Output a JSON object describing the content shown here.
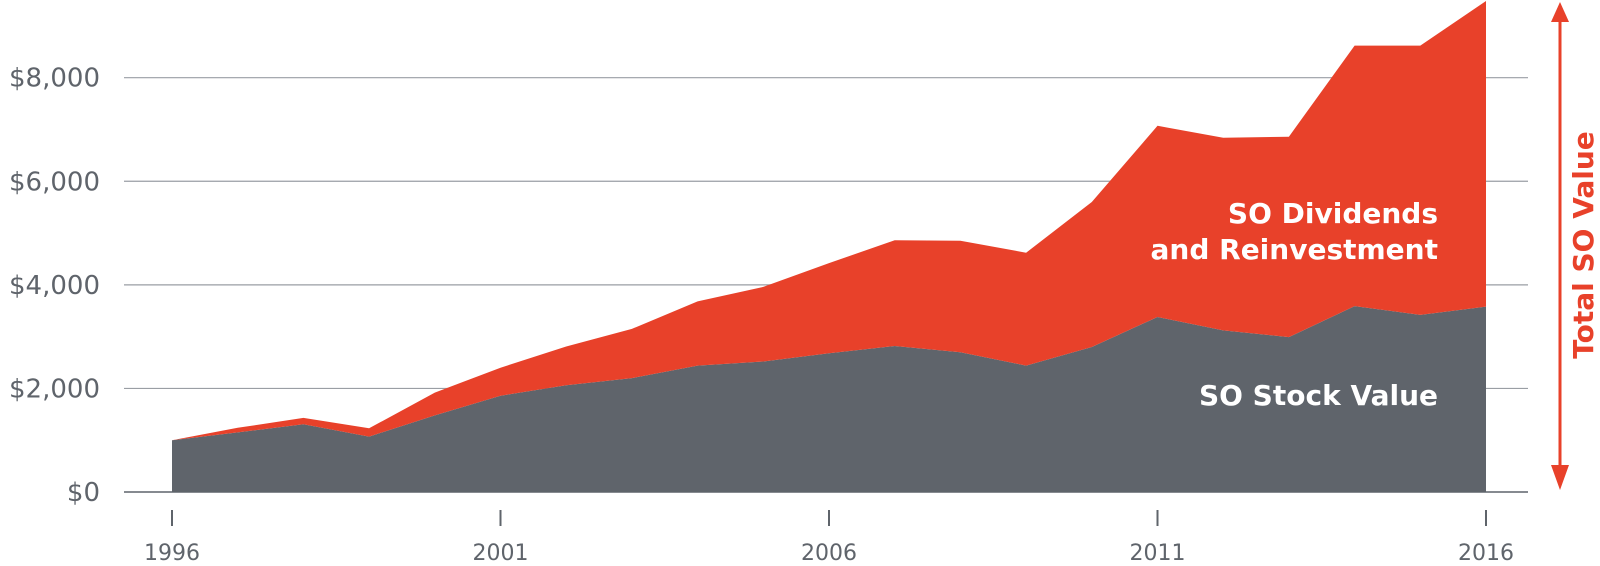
{
  "chart_data": {
    "type": "area",
    "stacked": true,
    "x": [
      1996,
      1997,
      1998,
      1999,
      2000,
      2001,
      2002,
      2003,
      2004,
      2005,
      2006,
      2007,
      2008,
      2009,
      2010,
      2011,
      2012,
      2013,
      2014,
      2015,
      2016
    ],
    "series": [
      {
        "name": "SO Stock Value",
        "color": "#5f646b",
        "values": [
          1000,
          1150,
          1310,
          1070,
          1480,
          1860,
          2060,
          2200,
          2440,
          2520,
          2680,
          2820,
          2700,
          2440,
          2800,
          3380,
          3120,
          2990,
          3590,
          3420,
          3580
        ]
      },
      {
        "name": "SO Dividends and Reinvestment",
        "color": "#e8412a",
        "values": [
          0,
          90,
          120,
          160,
          440,
          540,
          750,
          950,
          1240,
          1440,
          1740,
          2040,
          2150,
          2180,
          2800,
          3690,
          3720,
          3870,
          5030,
          5200,
          5900
        ]
      }
    ],
    "series_labels": {
      "stock": "SO Stock Value",
      "dividends_line1": "SO Dividends",
      "dividends_line2": "and Reinvestment"
    },
    "total_label": "Total SO Value",
    "y_ticks": [
      0,
      2000,
      4000,
      6000,
      8000
    ],
    "y_tick_labels": [
      "$0",
      "$2,000",
      "$4,000",
      "$6,000",
      "$8,000"
    ],
    "x_ticks": [
      1996,
      2001,
      2006,
      2011,
      2016
    ],
    "x_tick_labels": [
      "1996",
      "2001",
      "2006",
      "2011",
      "2016"
    ],
    "ylim": [
      0,
      9500
    ],
    "xlim": [
      1996,
      2016
    ],
    "grid": true,
    "legend": "inline"
  }
}
